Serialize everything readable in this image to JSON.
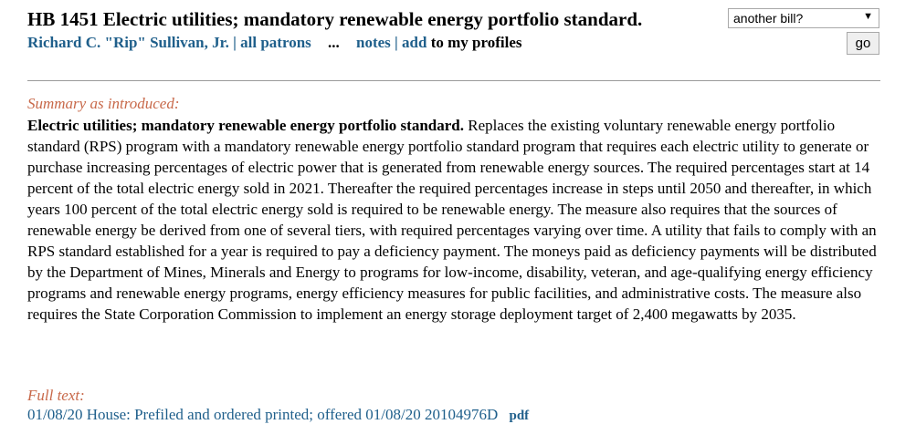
{
  "bill": {
    "title": "HB 1451 Electric utilities; mandatory renewable energy portfolio standard.",
    "patron": "Richard C. \"Rip\" Sullivan, Jr.",
    "separator": "|",
    "all_patrons": "all patrons",
    "ellipsis": "...",
    "notes": "notes",
    "add": "add",
    "to_profiles": "to my profiles"
  },
  "bill_selector": {
    "value": "another bill?",
    "go_label": "go"
  },
  "summary": {
    "heading": "Summary as introduced:",
    "lead": "Electric utilities; mandatory renewable energy portfolio standard.",
    "body": " Replaces the existing voluntary renewable energy portfolio standard (RPS) program with a mandatory renewable energy portfolio standard program that requires each electric utility to generate or purchase increasing percentages of electric power that is generated from renewable energy sources. The required percentages start at 14 percent of the total electric energy sold in 2021. Thereafter the required percentages increase in steps until 2050 and thereafter, in which years 100 percent of the total electric energy sold is required to be renewable energy. The measure also requires that the sources of renewable energy be derived from one of several tiers, with required percentages varying over time. A utility that fails to comply with an RPS standard established for a year is required to pay a deficiency payment. The moneys paid as deficiency payments will be distributed by the Department of Mines, Minerals and Energy to programs for low-income, disability, veteran, and age-qualifying energy efficiency programs and renewable energy programs, energy efficiency measures for public facilities, and administrative costs. The measure also requires the State Corporation Commission to implement an energy storage deployment target of 2,400 megawatts by 2035."
  },
  "full_text": {
    "heading": "Full text:",
    "entry": "01/08/20  House: Prefiled and ordered printed; offered 01/08/20 20104976D",
    "pdf": "pdf"
  },
  "icons": {
    "dropdown": "chevron-down-icon"
  },
  "colors": {
    "link": "#1f5f8b",
    "heading": "#c8694a"
  }
}
